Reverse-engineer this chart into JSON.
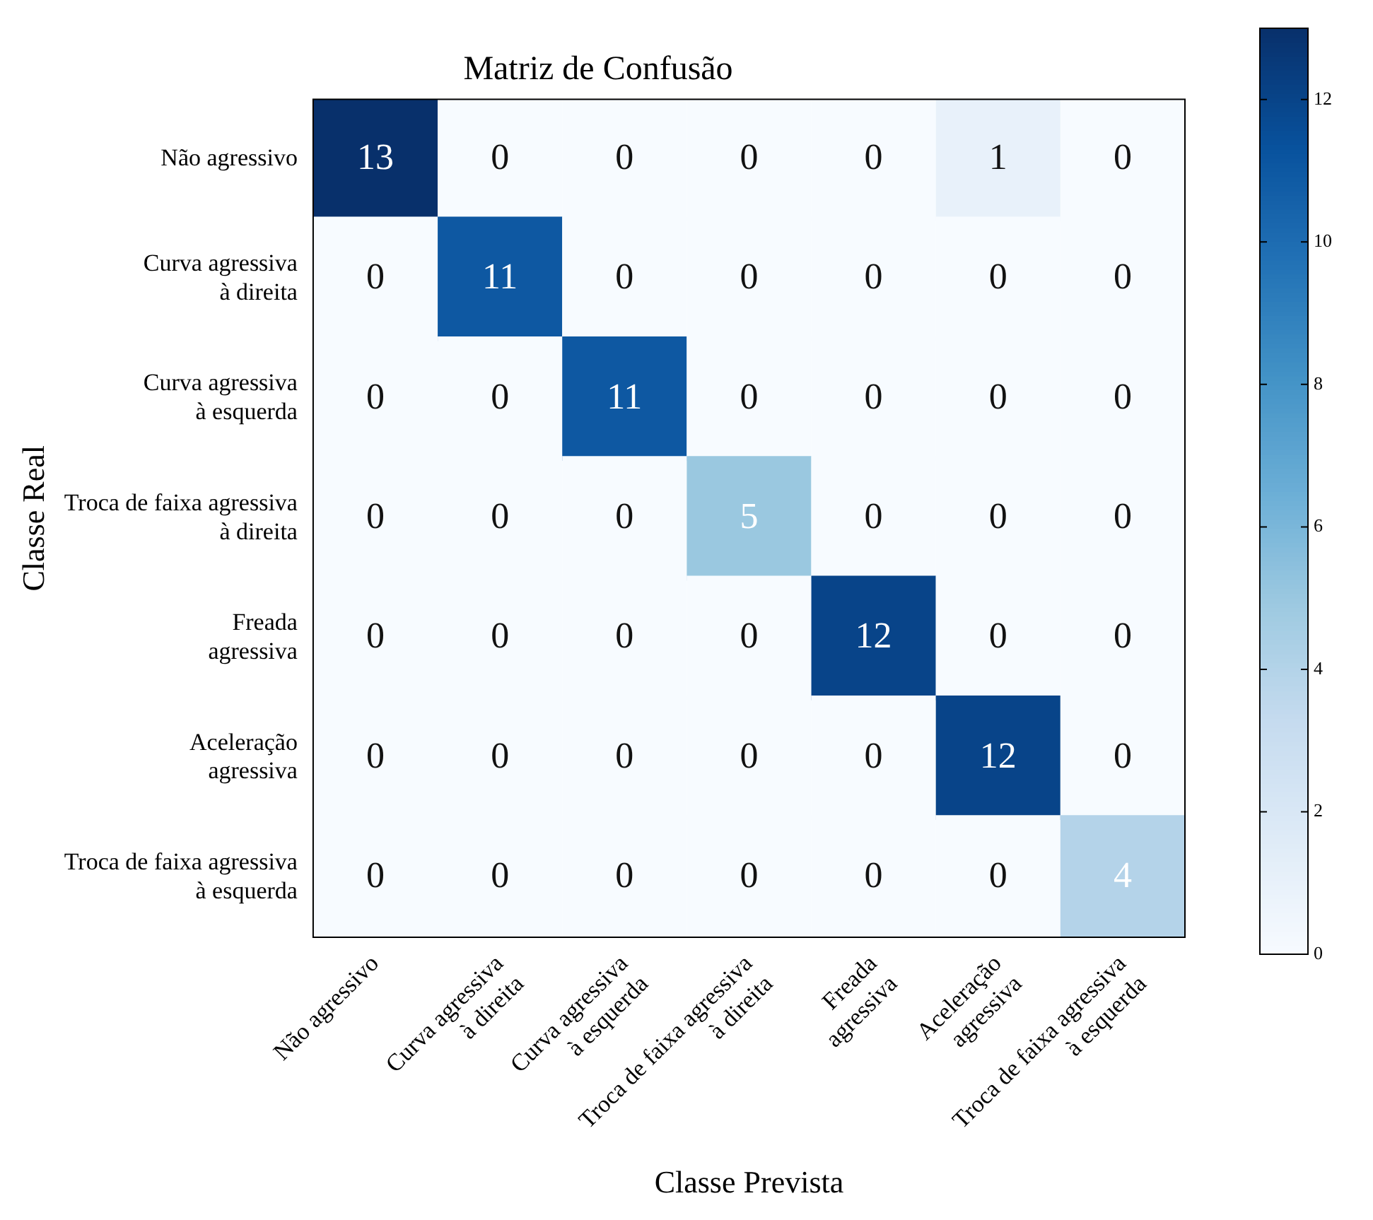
{
  "chart_data": {
    "type": "heatmap",
    "title": "Matriz de Confusão",
    "xlabel": "Classe Prevista",
    "ylabel": "Classe Real",
    "categories": [
      "Não agressivo",
      "Curva agressiva\nà direita",
      "Curva agressiva\nà esquerda",
      "Troca de faixa agressiva\nà direita",
      "Freada\nagressiva",
      "Aceleração\nagressiva",
      "Troca de faixa agressiva\nà esquerda"
    ],
    "y_categories": [
      "Não agressivo",
      "Curva agressiva\nà direita",
      "Curva agressiva\nà esquerda",
      "Troca de faixa agressiva\nà direita",
      "Freada\nagressiva",
      "Aceleração\nagressiva",
      "Troca de faixa agressiva\nà esquerda"
    ],
    "cells": [
      [
        13,
        0,
        0,
        0,
        0,
        1,
        0
      ],
      [
        0,
        11,
        0,
        0,
        0,
        0,
        0
      ],
      [
        0,
        0,
        11,
        0,
        0,
        0,
        0
      ],
      [
        0,
        0,
        0,
        5,
        0,
        0,
        0
      ],
      [
        0,
        0,
        0,
        0,
        12,
        0,
        0
      ],
      [
        0,
        0,
        0,
        0,
        0,
        12,
        0
      ],
      [
        0,
        0,
        0,
        0,
        0,
        0,
        4
      ]
    ],
    "clim": [
      0,
      13
    ],
    "cticks": [
      0,
      2,
      4,
      6,
      8,
      10,
      12
    ],
    "data_labels": true,
    "grid": false,
    "legend": false
  }
}
